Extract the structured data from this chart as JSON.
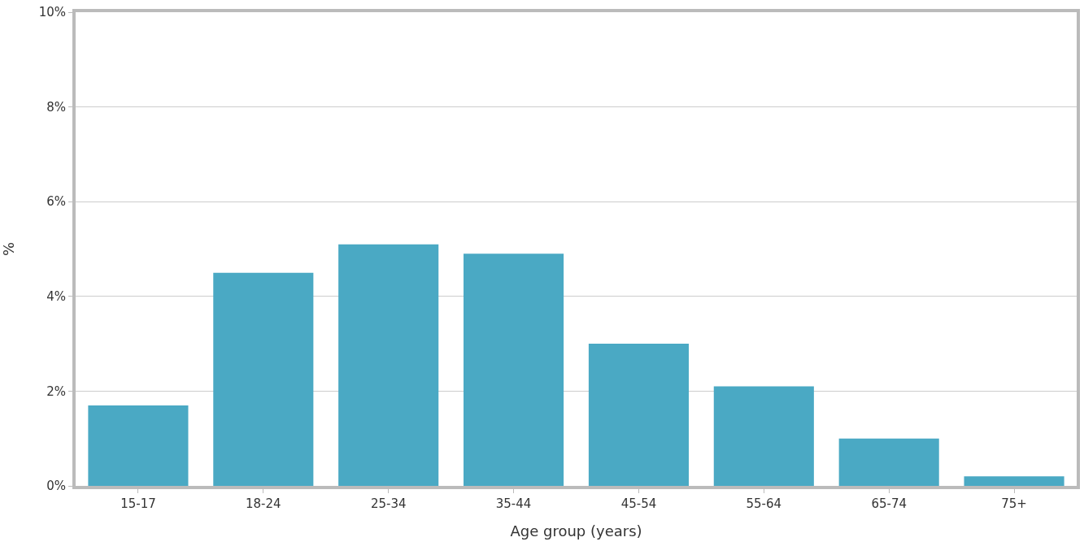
{
  "chart_data": {
    "type": "bar",
    "xlabel": "Age group (years)",
    "ylabel": "%",
    "categories": [
      "15-17",
      "18-24",
      "25-34",
      "35-44",
      "45-54",
      "55-64",
      "65-74",
      "75+"
    ],
    "values": [
      1.7,
      4.5,
      5.1,
      4.9,
      3.0,
      2.1,
      1.0,
      0.2
    ],
    "color": "#4aa9c4",
    "ylim": [
      0,
      10
    ],
    "yticks": [
      {
        "value": 0,
        "label": "0%"
      },
      {
        "value": 2,
        "label": "2%"
      },
      {
        "value": 4,
        "label": "4%"
      },
      {
        "value": 6,
        "label": "6%"
      },
      {
        "value": 8,
        "label": "8%"
      },
      {
        "value": 10,
        "label": "10%"
      }
    ],
    "grid": "y",
    "legend": false
  }
}
